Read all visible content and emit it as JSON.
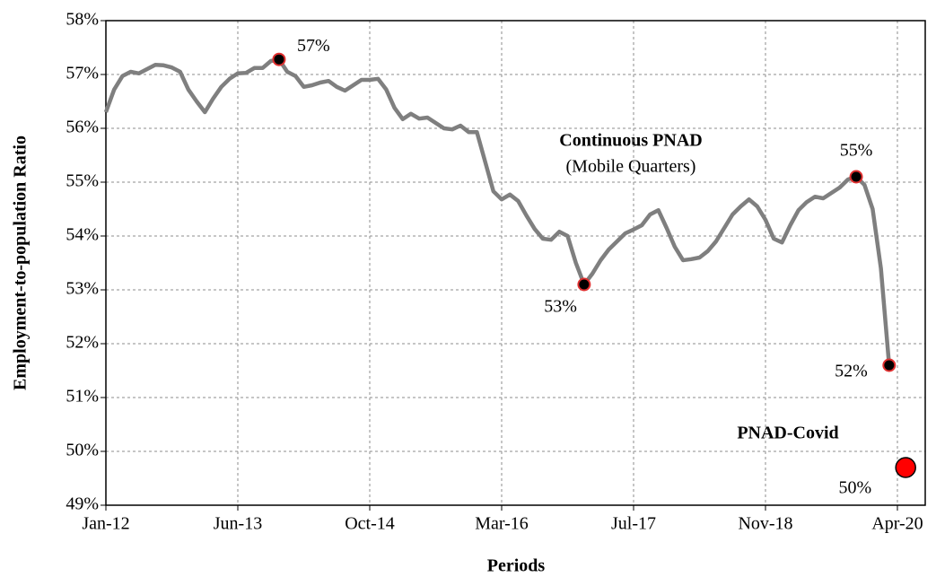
{
  "chart_data": {
    "type": "line",
    "x_label": "Periods",
    "y_label": "Employment-to-population Ratio",
    "categories": [
      "Jan-12",
      null,
      null,
      null,
      null,
      null,
      null,
      null,
      null,
      null,
      null,
      null,
      null,
      null,
      null,
      null,
      "Jun-13",
      null,
      null,
      null,
      null,
      null,
      null,
      null,
      null,
      null,
      null,
      null,
      null,
      null,
      null,
      null,
      "Oct-14",
      null,
      null,
      null,
      null,
      null,
      null,
      null,
      null,
      null,
      null,
      null,
      null,
      null,
      null,
      null,
      "Mar-16",
      null,
      null,
      null,
      null,
      null,
      null,
      null,
      null,
      null,
      null,
      null,
      null,
      null,
      null,
      null,
      "Jul-17",
      null,
      null,
      null,
      null,
      null,
      null,
      null,
      null,
      null,
      null,
      null,
      null,
      null,
      null,
      null,
      "Nov-18",
      null,
      null,
      null,
      null,
      null,
      null,
      null,
      null,
      null,
      null,
      null,
      null,
      null,
      null,
      null,
      "Apr-20",
      null
    ],
    "series": [
      {
        "name": "Continuous PNAD",
        "subtitle": "(Mobile Quarters)",
        "color": "#7f7f7f",
        "values": [
          56.3,
          56.72,
          56.97,
          57.05,
          57.02,
          57.1,
          57.18,
          57.17,
          57.13,
          57.05,
          56.72,
          56.5,
          56.3,
          56.55,
          56.77,
          56.92,
          57.02,
          57.03,
          57.12,
          57.12,
          57.25,
          57.28,
          57.05,
          56.97,
          56.77,
          56.8,
          56.85,
          56.88,
          56.77,
          56.7,
          56.8,
          56.9,
          56.9,
          56.92,
          56.72,
          56.38,
          56.17,
          56.27,
          56.18,
          56.2,
          56.1,
          56.0,
          55.98,
          56.05,
          55.93,
          55.93,
          55.38,
          54.83,
          54.68,
          54.77,
          54.65,
          54.38,
          54.13,
          53.95,
          53.93,
          54.08,
          54.0,
          53.5,
          53.1,
          53.3,
          53.55,
          53.75,
          53.9,
          54.05,
          54.12,
          54.2,
          54.4,
          54.48,
          54.15,
          53.8,
          53.55,
          53.57,
          53.6,
          53.72,
          53.9,
          54.15,
          54.4,
          54.55,
          54.68,
          54.55,
          54.3,
          53.95,
          53.88,
          54.2,
          54.48,
          54.63,
          54.73,
          54.7,
          54.8,
          54.9,
          55.05,
          55.1,
          54.95,
          54.5,
          53.4,
          51.6,
          null,
          null
        ],
        "value_labels": [
          null,
          null,
          null,
          null,
          null,
          null,
          null,
          null,
          null,
          null,
          null,
          null,
          null,
          null,
          null,
          null,
          null,
          null,
          null,
          null,
          null,
          "57%",
          null,
          null,
          null,
          null,
          null,
          null,
          null,
          null,
          null,
          null,
          null,
          null,
          null,
          null,
          null,
          null,
          null,
          null,
          null,
          null,
          null,
          null,
          null,
          null,
          null,
          null,
          null,
          null,
          null,
          null,
          null,
          null,
          null,
          null,
          null,
          null,
          "53%",
          null,
          null,
          null,
          null,
          null,
          null,
          null,
          null,
          null,
          null,
          null,
          null,
          null,
          null,
          null,
          null,
          null,
          null,
          null,
          null,
          null,
          null,
          null,
          null,
          null,
          null,
          null,
          null,
          null,
          null,
          null,
          null,
          "55%",
          null,
          null,
          null,
          "52%",
          null,
          null
        ]
      },
      {
        "name": "PNAD-Covid",
        "color": "#ff0000",
        "values": [
          null,
          null,
          null,
          null,
          null,
          null,
          null,
          null,
          null,
          null,
          null,
          null,
          null,
          null,
          null,
          null,
          null,
          null,
          null,
          null,
          null,
          null,
          null,
          null,
          null,
          null,
          null,
          null,
          null,
          null,
          null,
          null,
          null,
          null,
          null,
          null,
          null,
          null,
          null,
          null,
          null,
          null,
          null,
          null,
          null,
          null,
          null,
          null,
          null,
          null,
          null,
          null,
          null,
          null,
          null,
          null,
          null,
          null,
          null,
          null,
          null,
          null,
          null,
          null,
          null,
          null,
          null,
          null,
          null,
          null,
          null,
          null,
          null,
          null,
          null,
          null,
          null,
          null,
          null,
          null,
          null,
          null,
          null,
          null,
          null,
          null,
          null,
          null,
          null,
          null,
          null,
          null,
          null,
          null,
          null,
          null,
          null,
          49.7
        ],
        "value_labels": [
          null,
          null,
          null,
          null,
          null,
          null,
          null,
          null,
          null,
          null,
          null,
          null,
          null,
          null,
          null,
          null,
          null,
          null,
          null,
          null,
          null,
          null,
          null,
          null,
          null,
          null,
          null,
          null,
          null,
          null,
          null,
          null,
          null,
          null,
          null,
          null,
          null,
          null,
          null,
          null,
          null,
          null,
          null,
          null,
          null,
          null,
          null,
          null,
          null,
          null,
          null,
          null,
          null,
          null,
          null,
          null,
          null,
          null,
          null,
          null,
          null,
          null,
          null,
          null,
          null,
          null,
          null,
          null,
          null,
          null,
          null,
          null,
          null,
          null,
          null,
          null,
          null,
          null,
          null,
          null,
          null,
          null,
          null,
          null,
          null,
          null,
          null,
          null,
          null,
          null,
          null,
          null,
          null,
          null,
          null,
          null,
          null,
          "50%"
        ]
      }
    ],
    "ylim": [
      49,
      58
    ],
    "yticks": [
      {
        "value": 49,
        "label": "49%"
      },
      {
        "value": 50,
        "label": "50%"
      },
      {
        "value": 51,
        "label": "51%"
      },
      {
        "value": 52,
        "label": "52%"
      },
      {
        "value": 53,
        "label": "53%"
      },
      {
        "value": 54,
        "label": "54%"
      },
      {
        "value": 55,
        "label": "55%"
      },
      {
        "value": 56,
        "label": "56%"
      },
      {
        "value": 57,
        "label": "57%"
      },
      {
        "value": 58,
        "label": "58%"
      }
    ],
    "grid": true
  }
}
